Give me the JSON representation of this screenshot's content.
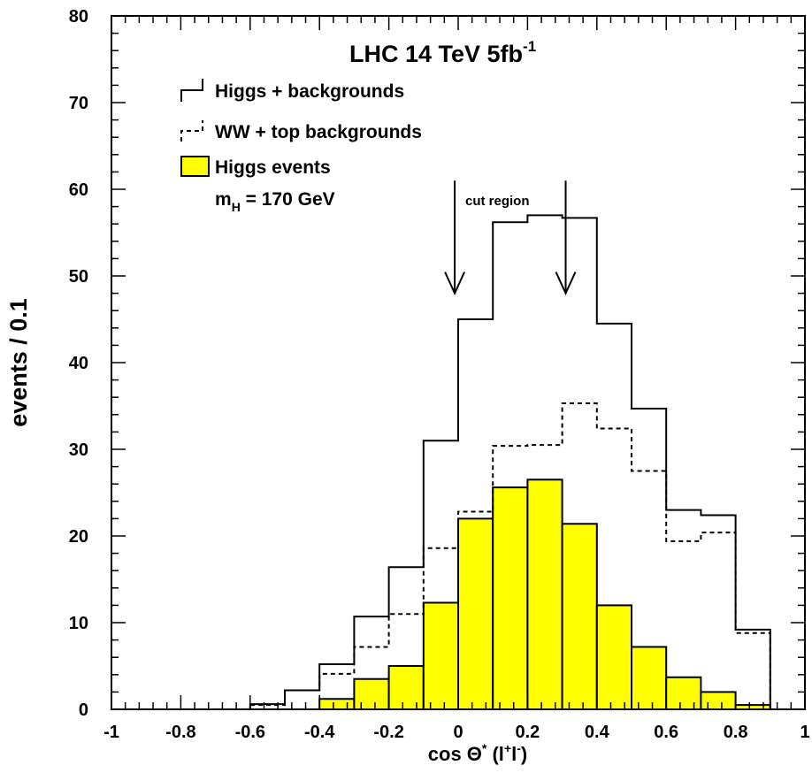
{
  "chart_data": {
    "type": "area",
    "title": "LHC 14 TeV 5fb",
    "title_sup": "-1",
    "xlabel_parts": {
      "pre": "cos Θ",
      "star": "*",
      "open": " (l",
      "plus": "+",
      "mid": "l",
      "minus": "-",
      "close": ")"
    },
    "ylabel": "events / 0.1",
    "xlim": [
      -1,
      1
    ],
    "ylim": [
      0,
      80
    ],
    "x_ticks": [
      -1,
      -0.8,
      -0.6,
      -0.4,
      -0.2,
      0,
      0.2,
      0.4,
      0.6,
      0.8,
      1
    ],
    "x_tick_labels": [
      "-1",
      "-0.8",
      "-0.6",
      "-0.4",
      "-0.2",
      "0",
      "0.2",
      "0.4",
      "0.6",
      "0.8",
      "1"
    ],
    "y_ticks": [
      0,
      10,
      20,
      30,
      40,
      50,
      60,
      70,
      80
    ],
    "y_tick_labels": [
      "0",
      "10",
      "20",
      "30",
      "40",
      "50",
      "60",
      "70",
      "80"
    ],
    "bin_edges": [
      -1.0,
      -0.9,
      -0.8,
      -0.7,
      -0.6,
      -0.5,
      -0.4,
      -0.3,
      -0.2,
      -0.1,
      0.0,
      0.1,
      0.2,
      0.3,
      0.4,
      0.5,
      0.6,
      0.7,
      0.8,
      0.9,
      1.0
    ],
    "series": [
      {
        "name": "Higgs + backgrounds",
        "style": "solid",
        "values": [
          0,
          0,
          0,
          0,
          0.6,
          2.2,
          5.2,
          10.7,
          16.4,
          31.0,
          45.0,
          56.2,
          57.0,
          56.7,
          44.5,
          34.7,
          23.0,
          22.4,
          9.2,
          0
        ]
      },
      {
        "name": "WW + top backgrounds",
        "style": "dashed",
        "values": [
          0,
          0,
          0,
          0,
          0.5,
          2.2,
          4.1,
          7.2,
          11.0,
          18.6,
          22.8,
          30.4,
          30.5,
          35.3,
          32.4,
          27.5,
          19.4,
          20.4,
          8.8,
          0
        ]
      },
      {
        "name": "Higgs events",
        "style": "filled",
        "color": "#ffff00",
        "values": [
          0,
          0,
          0,
          0,
          0,
          0,
          1.2,
          3.5,
          5.0,
          12.3,
          22.0,
          25.6,
          26.5,
          21.4,
          12.0,
          7.2,
          3.7,
          2.0,
          0.5,
          0
        ]
      }
    ],
    "legend": {
      "entries": [
        "Higgs + backgrounds",
        "WW + top backgrounds",
        "Higgs events"
      ],
      "extra_line": {
        "m": "m",
        "sub": "H",
        "rest": " = 170 GeV"
      }
    },
    "annotation": {
      "text": "cut region",
      "arrows_at": [
        -0.01,
        0.31
      ],
      "arrow_top": 61,
      "arrow_bottom": 48
    }
  }
}
